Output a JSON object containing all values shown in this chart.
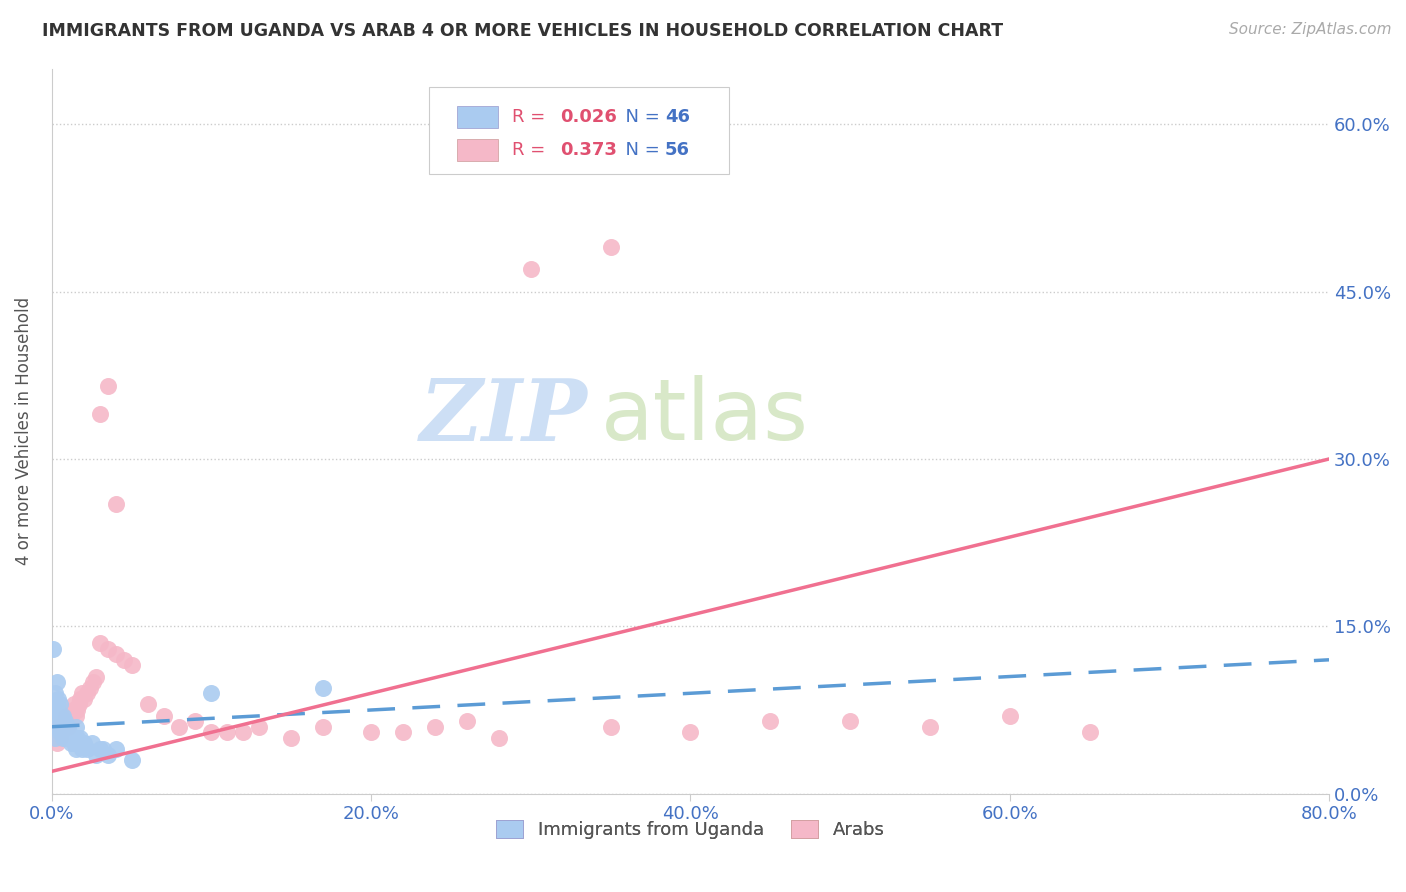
{
  "title": "IMMIGRANTS FROM UGANDA VS ARAB 4 OR MORE VEHICLES IN HOUSEHOLD CORRELATION CHART",
  "source": "Source: ZipAtlas.com",
  "ylabel": "4 or more Vehicles in Household",
  "xlim": [
    0.0,
    0.8
  ],
  "ylim": [
    0.0,
    0.65
  ],
  "x_ticks": [
    0.0,
    0.2,
    0.4,
    0.6,
    0.8
  ],
  "x_tick_labels": [
    "0.0%",
    "20.0%",
    "40.0%",
    "60.0%",
    "80.0%"
  ],
  "y_ticks": [
    0.0,
    0.15,
    0.3,
    0.45,
    0.6
  ],
  "y_tick_labels": [
    "0.0%",
    "15.0%",
    "30.0%",
    "45.0%",
    "60.0%"
  ],
  "uganda_color": "#aacbf0",
  "arab_color": "#f5b8c8",
  "uganda_line_color": "#5b9bd5",
  "arab_line_color": "#f07090",
  "uganda_R": 0.026,
  "uganda_N": 46,
  "arab_R": 0.373,
  "arab_N": 56,
  "watermark_zip": "ZIP",
  "watermark_atlas": "atlas",
  "watermark_color_zip": "#c8ddf0",
  "watermark_color_atlas": "#dde8c0",
  "background_color": "#ffffff",
  "grid_color": "#cccccc",
  "tick_label_color_y": "#555555",
  "tick_label_color_x": "#4472c4",
  "right_axis_color": "#4472c4",
  "legend_R_color": "#e05070",
  "legend_N_color": "#4472c4",
  "uganda_scatter_x": [
    0.001,
    0.002,
    0.002,
    0.003,
    0.003,
    0.003,
    0.004,
    0.004,
    0.004,
    0.005,
    0.005,
    0.005,
    0.006,
    0.006,
    0.007,
    0.007,
    0.007,
    0.008,
    0.008,
    0.009,
    0.009,
    0.01,
    0.01,
    0.011,
    0.011,
    0.012,
    0.012,
    0.013,
    0.014,
    0.015,
    0.015,
    0.016,
    0.017,
    0.018,
    0.019,
    0.02,
    0.022,
    0.025,
    0.028,
    0.03,
    0.032,
    0.035,
    0.04,
    0.05,
    0.1,
    0.17
  ],
  "uganda_scatter_y": [
    0.13,
    0.05,
    0.09,
    0.07,
    0.08,
    0.1,
    0.06,
    0.075,
    0.085,
    0.055,
    0.07,
    0.08,
    0.06,
    0.07,
    0.05,
    0.06,
    0.07,
    0.055,
    0.065,
    0.05,
    0.06,
    0.055,
    0.06,
    0.05,
    0.055,
    0.045,
    0.05,
    0.05,
    0.045,
    0.04,
    0.06,
    0.05,
    0.045,
    0.05,
    0.04,
    0.045,
    0.04,
    0.045,
    0.035,
    0.04,
    0.04,
    0.035,
    0.04,
    0.03,
    0.09,
    0.095
  ],
  "arab_scatter_x": [
    0.001,
    0.002,
    0.003,
    0.004,
    0.005,
    0.006,
    0.007,
    0.008,
    0.009,
    0.01,
    0.011,
    0.012,
    0.013,
    0.014,
    0.015,
    0.016,
    0.017,
    0.018,
    0.019,
    0.02,
    0.022,
    0.024,
    0.026,
    0.028,
    0.03,
    0.035,
    0.04,
    0.045,
    0.05,
    0.06,
    0.07,
    0.08,
    0.09,
    0.1,
    0.11,
    0.12,
    0.13,
    0.15,
    0.17,
    0.2,
    0.22,
    0.24,
    0.26,
    0.28,
    0.35,
    0.4,
    0.45,
    0.5,
    0.55,
    0.6,
    0.03,
    0.035,
    0.04,
    0.3,
    0.35,
    0.65
  ],
  "arab_scatter_y": [
    0.05,
    0.055,
    0.045,
    0.06,
    0.05,
    0.055,
    0.06,
    0.065,
    0.07,
    0.06,
    0.065,
    0.07,
    0.075,
    0.08,
    0.07,
    0.075,
    0.08,
    0.085,
    0.09,
    0.085,
    0.09,
    0.095,
    0.1,
    0.105,
    0.34,
    0.365,
    0.26,
    0.12,
    0.115,
    0.08,
    0.07,
    0.06,
    0.065,
    0.055,
    0.055,
    0.055,
    0.06,
    0.05,
    0.06,
    0.055,
    0.055,
    0.06,
    0.065,
    0.05,
    0.06,
    0.055,
    0.065,
    0.065,
    0.06,
    0.07,
    0.135,
    0.13,
    0.125,
    0.47,
    0.49,
    0.055
  ]
}
